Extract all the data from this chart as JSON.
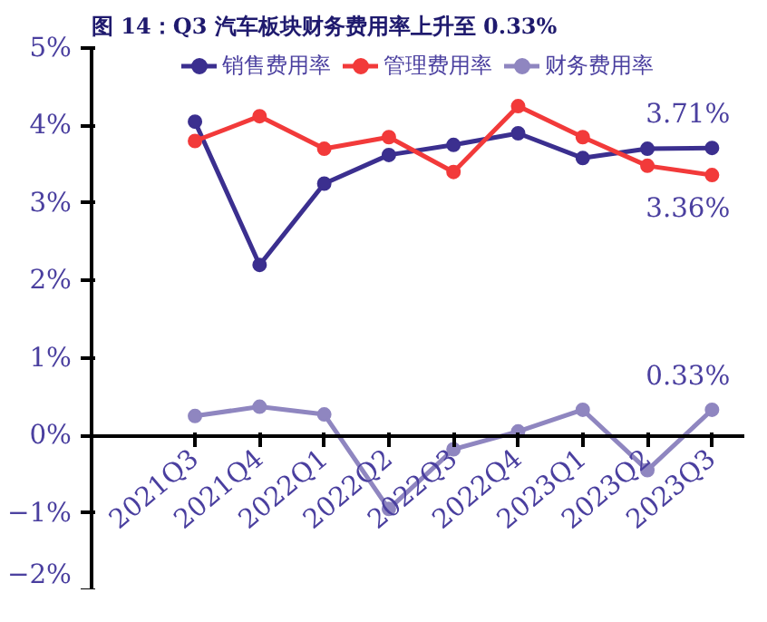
{
  "chart_data": {
    "type": "line",
    "title": "图 14：Q3 汽车板块财务费用率上升至 0.33%",
    "categories": [
      "2021Q3",
      "2021Q4",
      "2022Q1",
      "2022Q2",
      "2022Q3",
      "2022Q4",
      "2023Q1",
      "2023Q2",
      "2023Q3"
    ],
    "series": [
      {
        "name": "销售费用率",
        "color": "#3b2f8f",
        "values": [
          4.05,
          2.2,
          3.25,
          3.62,
          3.75,
          3.9,
          3.58,
          3.7,
          3.71
        ],
        "value_labels": [
          null,
          null,
          null,
          null,
          null,
          null,
          null,
          null,
          "3.71%"
        ]
      },
      {
        "name": "管理费用率",
        "color": "#f23a3a",
        "values": [
          3.8,
          4.12,
          3.7,
          3.85,
          3.4,
          4.25,
          3.85,
          3.48,
          3.36
        ],
        "value_labels": [
          null,
          null,
          null,
          null,
          null,
          null,
          null,
          null,
          "3.36%"
        ]
      },
      {
        "name": "财务费用率",
        "color": "#8f86c0",
        "values": [
          0.25,
          0.37,
          0.27,
          -0.95,
          -0.18,
          0.05,
          0.33,
          -0.45,
          0.33
        ],
        "value_labels": [
          null,
          null,
          null,
          null,
          null,
          null,
          null,
          null,
          "0.33%"
        ]
      }
    ],
    "ylim": [
      -2,
      5
    ],
    "yticks": [
      {
        "value": -2,
        "label": "−2%"
      },
      {
        "value": -1,
        "label": "−1%"
      },
      {
        "value": 0,
        "label": "0%"
      },
      {
        "value": 1,
        "label": "1%"
      },
      {
        "value": 2,
        "label": "2%"
      },
      {
        "value": 3,
        "label": "3%"
      },
      {
        "value": 4,
        "label": "4%"
      },
      {
        "value": 5,
        "label": "5%"
      }
    ],
    "grid": false,
    "legend": "top",
    "marker": "circle",
    "line_style": "solid"
  }
}
